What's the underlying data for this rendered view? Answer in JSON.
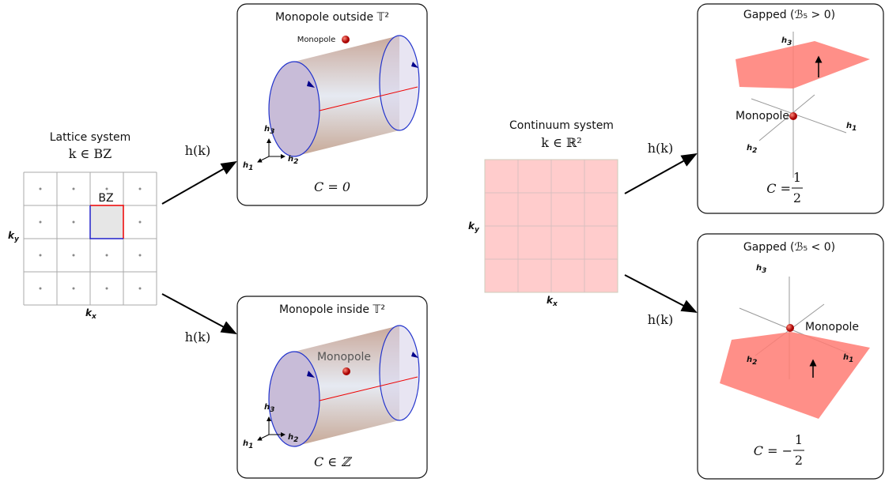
{
  "lattice": {
    "title": "Lattice system",
    "subtitle": "k ∈ BZ",
    "bz_label": "BZ",
    "y_axis": {
      "main": "k",
      "sub": "y"
    },
    "x_axis": {
      "main": "k",
      "sub": "x"
    }
  },
  "continuum": {
    "title": "Continuum system",
    "subtitle": "k ∈ ℝ²",
    "y_axis": {
      "main": "k",
      "sub": "y"
    },
    "x_axis": {
      "main": "k",
      "sub": "x"
    }
  },
  "arrows": [
    "h(k)",
    "h(k)",
    "h(k)",
    "h(k)"
  ],
  "panels": [
    {
      "title": "Monopole outside 𝕋²",
      "monopole": "Monopole",
      "axes": [
        {
          "main": "h",
          "sub": "3"
        },
        {
          "main": "h",
          "sub": "1"
        },
        {
          "main": "h",
          "sub": "2"
        }
      ],
      "chern": "C = 0"
    },
    {
      "title": "Monopole inside 𝕋²",
      "monopole": "Monopole",
      "axes": [
        {
          "main": "h",
          "sub": "3"
        },
        {
          "main": "h",
          "sub": "1"
        },
        {
          "main": "h",
          "sub": "2"
        }
      ],
      "chern": "C ∈ ℤ"
    },
    {
      "title": "Gapped (ℬ₅ > 0)",
      "monopole": "Monopole",
      "axes": [
        {
          "main": "h",
          "sub": "3"
        },
        {
          "main": "h",
          "sub": "1"
        },
        {
          "main": "h",
          "sub": "2"
        }
      ],
      "chern": {
        "prefix": "C = ",
        "numerator": "1",
        "denominator": "2"
      }
    },
    {
      "title": "Gapped (ℬ₅ < 0)",
      "monopole": "Monopole",
      "axes": [
        {
          "main": "h",
          "sub": "3"
        },
        {
          "main": "h",
          "sub": "1"
        },
        {
          "main": "h",
          "sub": "2"
        }
      ],
      "chern": {
        "prefix": "C = −",
        "numerator": "1",
        "denominator": "2"
      }
    }
  ]
}
